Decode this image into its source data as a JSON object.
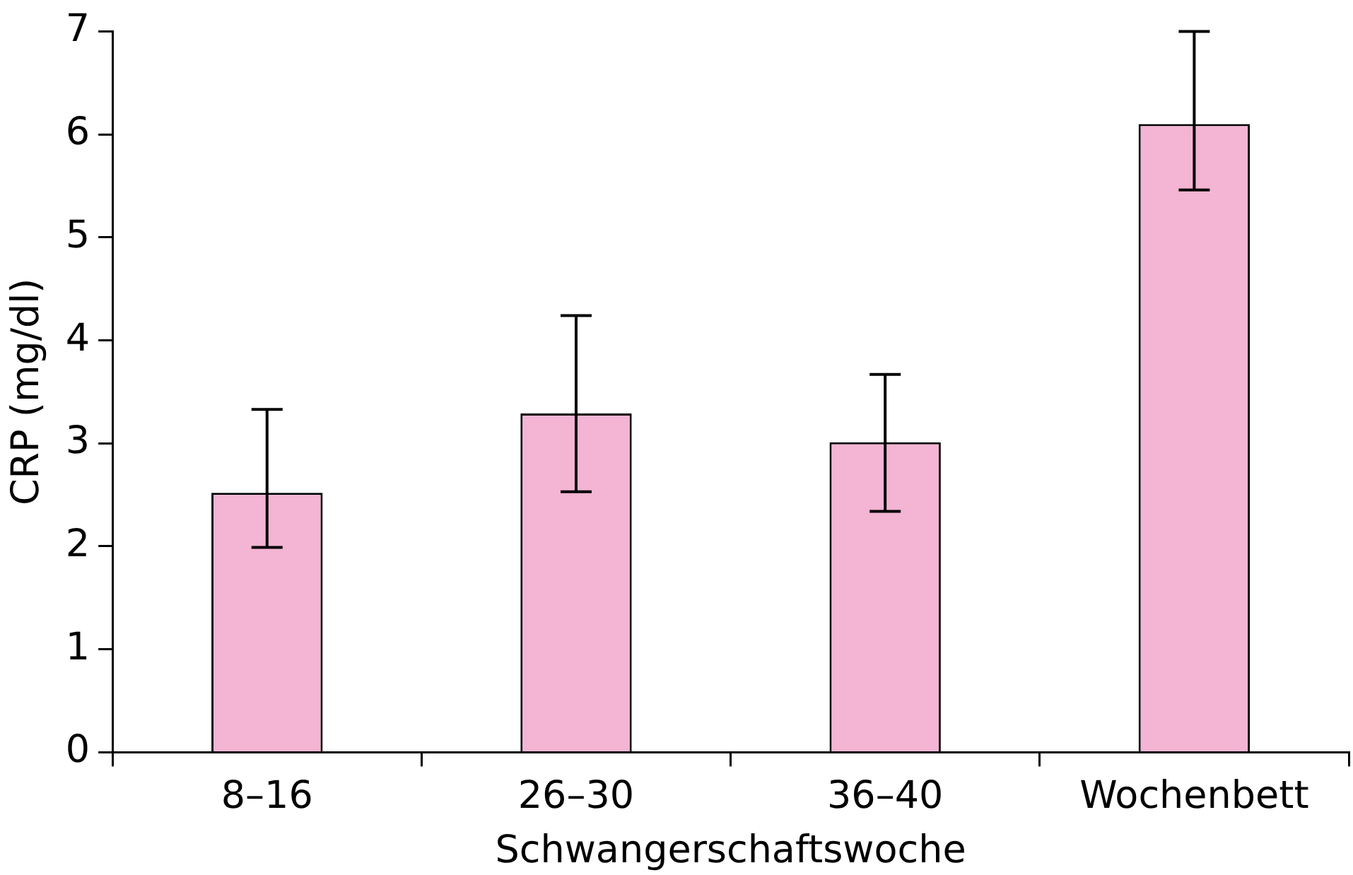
{
  "chart_data": {
    "type": "bar",
    "xlabel": "Schwangerschaftswoche",
    "ylabel": "CRP (mg/dl)",
    "categories": [
      "8–16",
      "26–30",
      "36–40",
      "Wochenbett"
    ],
    "values": [
      2.52,
      3.29,
      3.01,
      6.1
    ],
    "errors": [
      [
        1.99,
        3.33
      ],
      [
        2.53,
        4.24
      ],
      [
        2.34,
        3.67
      ],
      [
        5.46,
        7.0
      ]
    ],
    "color": "#f4b4d4",
    "ylim": [
      0,
      7
    ],
    "yticks": [
      0,
      1,
      2,
      3,
      4,
      5,
      6,
      7
    ],
    "grid": false,
    "legend": false
  }
}
